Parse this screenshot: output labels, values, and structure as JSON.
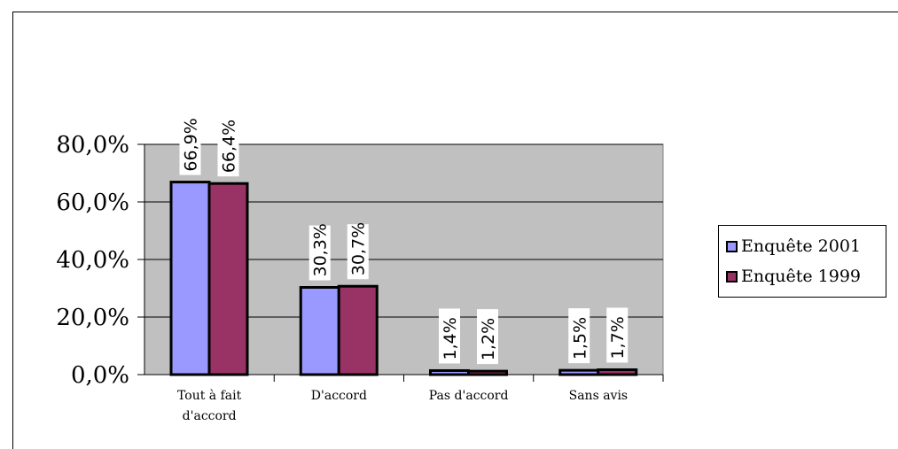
{
  "chart_data": {
    "type": "bar",
    "categories": [
      "Tout à fait d'accord",
      "D'accord",
      "Pas d'accord",
      "Sans avis"
    ],
    "category_lines": [
      [
        "Tout à fait",
        "d'accord"
      ],
      [
        "D'accord"
      ],
      [
        "Pas d'accord"
      ],
      [
        "Sans avis"
      ]
    ],
    "series": [
      {
        "name": "Enquête 2001",
        "values": [
          66.9,
          30.3,
          1.4,
          1.5
        ],
        "labels": [
          "66,9%",
          "30,3%",
          "1,4%",
          "1,5%"
        ],
        "color": "#9999ff"
      },
      {
        "name": "Enquête 1999",
        "values": [
          66.4,
          30.7,
          1.2,
          1.7
        ],
        "labels": [
          "66,4%",
          "30,7%",
          "1,2%",
          "1,7%"
        ],
        "color": "#993366"
      }
    ],
    "ylim": [
      0,
      80
    ],
    "yticks": [
      0,
      20,
      40,
      60,
      80
    ],
    "ytick_labels": [
      "0,0%",
      "20,0%",
      "40,0%",
      "60,0%",
      "80,0%"
    ],
    "grid": true,
    "plot_background": "#c0c0c0",
    "legend_position": "right",
    "title": "",
    "xlabel": "",
    "ylabel": ""
  }
}
